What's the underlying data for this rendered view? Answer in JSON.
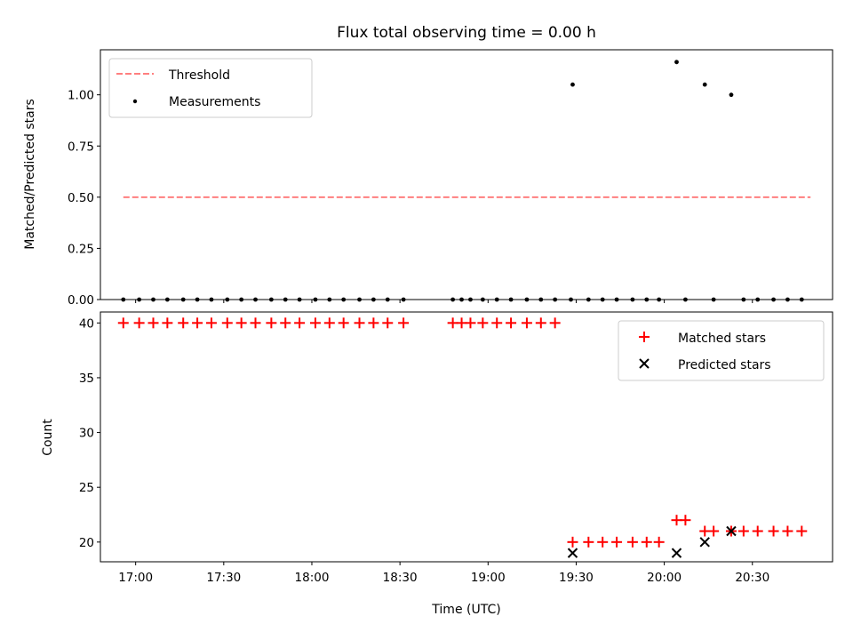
{
  "chart_data": [
    {
      "type": "scatter",
      "title": "Flux total observing time = 0.00 h",
      "xlabel": "",
      "ylabel": "Matched/Predicted stars",
      "xlim": [
        16.8,
        20.955
      ],
      "ylim": [
        0,
        1.22
      ],
      "yticks": [
        0,
        0.25,
        0.5,
        0.75,
        1.0
      ],
      "ytick_labels": [
        "0.00",
        "0.25",
        "0.50",
        "0.75",
        "1.00"
      ],
      "legend_position": "top-left",
      "legend": [
        "Threshold",
        "Measurements"
      ],
      "threshold": {
        "name": "Threshold",
        "x": [
          16.93,
          20.83
        ],
        "y": 0.5,
        "color": "#ff7f7f",
        "style": "dashed"
      },
      "series": [
        {
          "name": "Measurements",
          "color": "#000000",
          "points": [
            [
              16.93,
              0
            ],
            [
              17.02,
              0
            ],
            [
              17.1,
              0
            ],
            [
              17.18,
              0
            ],
            [
              17.27,
              0
            ],
            [
              17.35,
              0
            ],
            [
              17.43,
              0
            ],
            [
              17.52,
              0
            ],
            [
              17.6,
              0
            ],
            [
              17.68,
              0
            ],
            [
              17.77,
              0
            ],
            [
              17.85,
              0
            ],
            [
              17.93,
              0
            ],
            [
              18.02,
              0
            ],
            [
              18.1,
              0
            ],
            [
              18.18,
              0
            ],
            [
              18.27,
              0
            ],
            [
              18.35,
              0
            ],
            [
              18.43,
              0
            ],
            [
              18.52,
              0
            ],
            [
              18.8,
              0
            ],
            [
              18.85,
              0
            ],
            [
              18.9,
              0
            ],
            [
              18.97,
              0
            ],
            [
              19.05,
              0
            ],
            [
              19.13,
              0
            ],
            [
              19.22,
              0
            ],
            [
              19.3,
              0
            ],
            [
              19.38,
              0
            ],
            [
              19.47,
              0
            ],
            [
              19.48,
              1.05
            ],
            [
              19.57,
              0
            ],
            [
              19.65,
              0
            ],
            [
              19.73,
              0
            ],
            [
              19.82,
              0
            ],
            [
              19.9,
              0
            ],
            [
              19.97,
              0
            ],
            [
              20.07,
              1.16
            ],
            [
              20.12,
              0
            ],
            [
              20.23,
              1.05
            ],
            [
              20.28,
              0
            ],
            [
              20.38,
              1.0
            ],
            [
              20.45,
              0
            ],
            [
              20.53,
              0
            ],
            [
              20.62,
              0
            ],
            [
              20.7,
              0
            ],
            [
              20.78,
              0
            ]
          ]
        }
      ]
    },
    {
      "type": "scatter",
      "title": "",
      "xlabel": "Time (UTC)",
      "ylabel": "Count",
      "xlim": [
        16.8,
        20.955
      ],
      "ylim": [
        18.2,
        41.0
      ],
      "yticks": [
        20,
        25,
        30,
        35,
        40
      ],
      "ytick_labels": [
        "20",
        "25",
        "30",
        "35",
        "40"
      ],
      "xticks": [
        17.0,
        17.5,
        18.0,
        18.5,
        19.0,
        19.5,
        20.0,
        20.5
      ],
      "xtick_labels": [
        "17:00",
        "17:30",
        "18:00",
        "18:30",
        "19:00",
        "19:30",
        "20:00",
        "20:30"
      ],
      "legend_position": "top-right",
      "legend": [
        "Matched stars",
        "Predicted stars"
      ],
      "series": [
        {
          "name": "Matched stars",
          "marker": "+",
          "color": "#ff0000",
          "points": [
            [
              16.93,
              40
            ],
            [
              17.02,
              40
            ],
            [
              17.1,
              40
            ],
            [
              17.18,
              40
            ],
            [
              17.27,
              40
            ],
            [
              17.35,
              40
            ],
            [
              17.43,
              40
            ],
            [
              17.52,
              40
            ],
            [
              17.6,
              40
            ],
            [
              17.68,
              40
            ],
            [
              17.77,
              40
            ],
            [
              17.85,
              40
            ],
            [
              17.93,
              40
            ],
            [
              18.02,
              40
            ],
            [
              18.1,
              40
            ],
            [
              18.18,
              40
            ],
            [
              18.27,
              40
            ],
            [
              18.35,
              40
            ],
            [
              18.43,
              40
            ],
            [
              18.52,
              40
            ],
            [
              18.8,
              40
            ],
            [
              18.85,
              40
            ],
            [
              18.9,
              40
            ],
            [
              18.97,
              40
            ],
            [
              19.05,
              40
            ],
            [
              19.13,
              40
            ],
            [
              19.22,
              40
            ],
            [
              19.3,
              40
            ],
            [
              19.38,
              40
            ],
            [
              19.48,
              20
            ],
            [
              19.57,
              20
            ],
            [
              19.65,
              20
            ],
            [
              19.73,
              20
            ],
            [
              19.82,
              20
            ],
            [
              19.9,
              20
            ],
            [
              19.97,
              20
            ],
            [
              20.07,
              22
            ],
            [
              20.12,
              22
            ],
            [
              20.23,
              21
            ],
            [
              20.28,
              21
            ],
            [
              20.38,
              21
            ],
            [
              20.45,
              21
            ],
            [
              20.53,
              21
            ],
            [
              20.62,
              21
            ],
            [
              20.7,
              21
            ],
            [
              20.78,
              21
            ]
          ]
        },
        {
          "name": "Predicted stars",
          "marker": "x",
          "color": "#000000",
          "points": [
            [
              19.48,
              19
            ],
            [
              20.07,
              19
            ],
            [
              20.23,
              20
            ],
            [
              20.38,
              21
            ]
          ]
        }
      ]
    }
  ]
}
